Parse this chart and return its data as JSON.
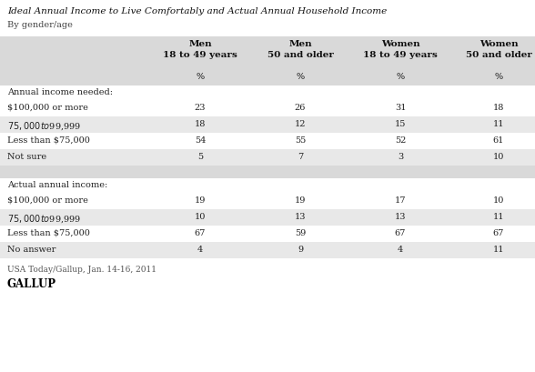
{
  "title": "Ideal Annual Income to Live Comfortably and Actual Annual Household Income",
  "subtitle": "By gender/age",
  "col_headers": [
    [
      "Men",
      "18 to 49 years"
    ],
    [
      "Men",
      "50 and older"
    ],
    [
      "Women",
      "18 to 49 years"
    ],
    [
      "Women",
      "50 and older"
    ]
  ],
  "pct_label": "%",
  "section1_label": "Annual income needed:",
  "section1_rows": [
    [
      "$100,000 or more",
      "23",
      "26",
      "31",
      "18"
    ],
    [
      "$75,000 to $99,999",
      "18",
      "12",
      "15",
      "11"
    ],
    [
      "Less than $75,000",
      "54",
      "55",
      "52",
      "61"
    ],
    [
      "Not sure",
      "5",
      "7",
      "3",
      "10"
    ]
  ],
  "section2_label": "Actual annual income:",
  "section2_rows": [
    [
      "$100,000 or more",
      "19",
      "19",
      "17",
      "10"
    ],
    [
      "$75,000 to $99,999",
      "10",
      "13",
      "13",
      "11"
    ],
    [
      "Less than $75,000",
      "67",
      "59",
      "67",
      "67"
    ],
    [
      "No answer",
      "4",
      "9",
      "4",
      "11"
    ]
  ],
  "footnote": "USA Today/Gallup, Jan. 14-16, 2011",
  "brand": "GALLUP",
  "bg_color": "#ffffff",
  "header_bg": "#d9d9d9",
  "row_alt_bg": "#e8e8e8",
  "row_white_bg": "#ffffff",
  "section_gap_bg": "#d9d9d9",
  "text_color": "#222222",
  "header_text_color": "#111111",
  "title_color": "#111111",
  "subtitle_color": "#444444",
  "footnote_color": "#555555",
  "brand_color": "#000000"
}
